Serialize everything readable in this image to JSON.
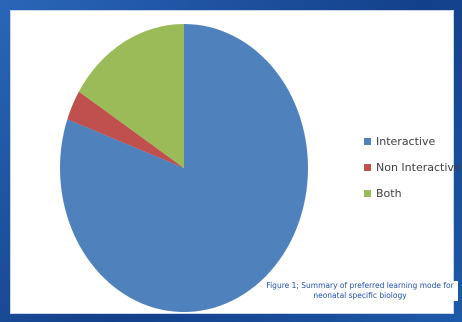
{
  "chart_data": {
    "type": "pie",
    "title": "",
    "categories": [
      "Interactive",
      "Non Interactive",
      "Both"
    ],
    "values": [
      80.5,
      3.4,
      16.1
    ],
    "colors": [
      "#4f81bd",
      "#c0504d",
      "#9bbb59"
    ],
    "start_angle_deg": 0,
    "direction": "clockwise",
    "legend_position": "right"
  },
  "caption": {
    "line1": "Figure 1; Summary of preferred learning mode for",
    "line2": "neonatal specific biology"
  }
}
